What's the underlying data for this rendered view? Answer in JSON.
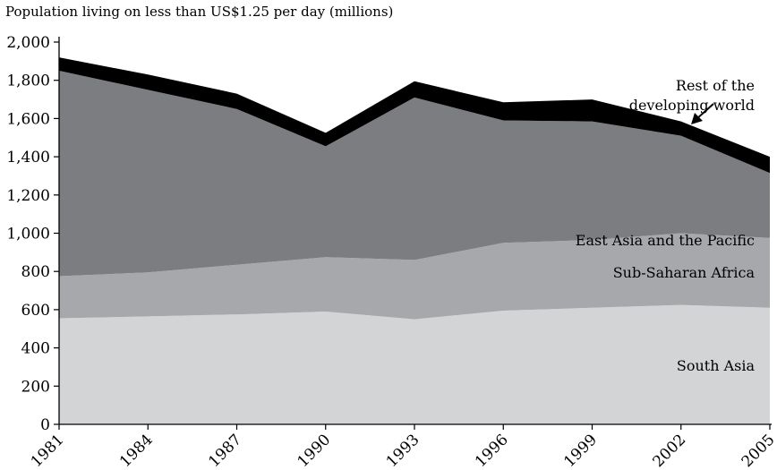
{
  "chart_data": {
    "type": "area",
    "stacked": true,
    "title": "Population living on less than US$1.25 per day (millions)",
    "xlabel": "",
    "ylabel": "",
    "x": [
      1981,
      1984,
      1987,
      1990,
      1993,
      1996,
      1999,
      2002,
      2005
    ],
    "xlim": [
      1981,
      2005
    ],
    "ylim": [
      0,
      2000
    ],
    "y_ticks": [
      "0",
      "200",
      "400",
      "600",
      "800",
      "1,000",
      "1,200",
      "1,400",
      "1,600",
      "1,800",
      "2,000"
    ],
    "x_ticks": [
      "1981",
      "1984",
      "1987",
      "1990",
      "1993",
      "1996",
      "1999",
      "2002",
      "2005"
    ],
    "grid": false,
    "legend": "none",
    "series": [
      {
        "name": "South Asia",
        "values": [
          555,
          565,
          575,
          590,
          550,
          595,
          610,
          625,
          610
        ],
        "color": "#d3d4d6"
      },
      {
        "name": "Sub-Saharan Africa",
        "values": [
          220,
          230,
          260,
          285,
          310,
          355,
          355,
          375,
          365
        ],
        "color": "#a7a8ab"
      },
      {
        "name": "East Asia and the Pacific",
        "values": [
          1075,
          955,
          815,
          580,
          850,
          640,
          620,
          510,
          340
        ],
        "color": "#7c7d80"
      },
      {
        "name": "Rest of the developing world",
        "values": [
          70,
          80,
          80,
          70,
          85,
          95,
          115,
          75,
          85
        ],
        "color": "#000000"
      }
    ],
    "annotations": [
      {
        "text": "Rest of the",
        "series": "Rest of the developing world"
      },
      {
        "text": "developing world",
        "series": "Rest of the developing world"
      },
      {
        "text": "East Asia and the Pacific",
        "series": "East Asia and the Pacific"
      },
      {
        "text": "Sub-Saharan Africa",
        "series": "Sub-Saharan Africa"
      },
      {
        "text": "South Asia",
        "series": "South Asia"
      }
    ]
  }
}
